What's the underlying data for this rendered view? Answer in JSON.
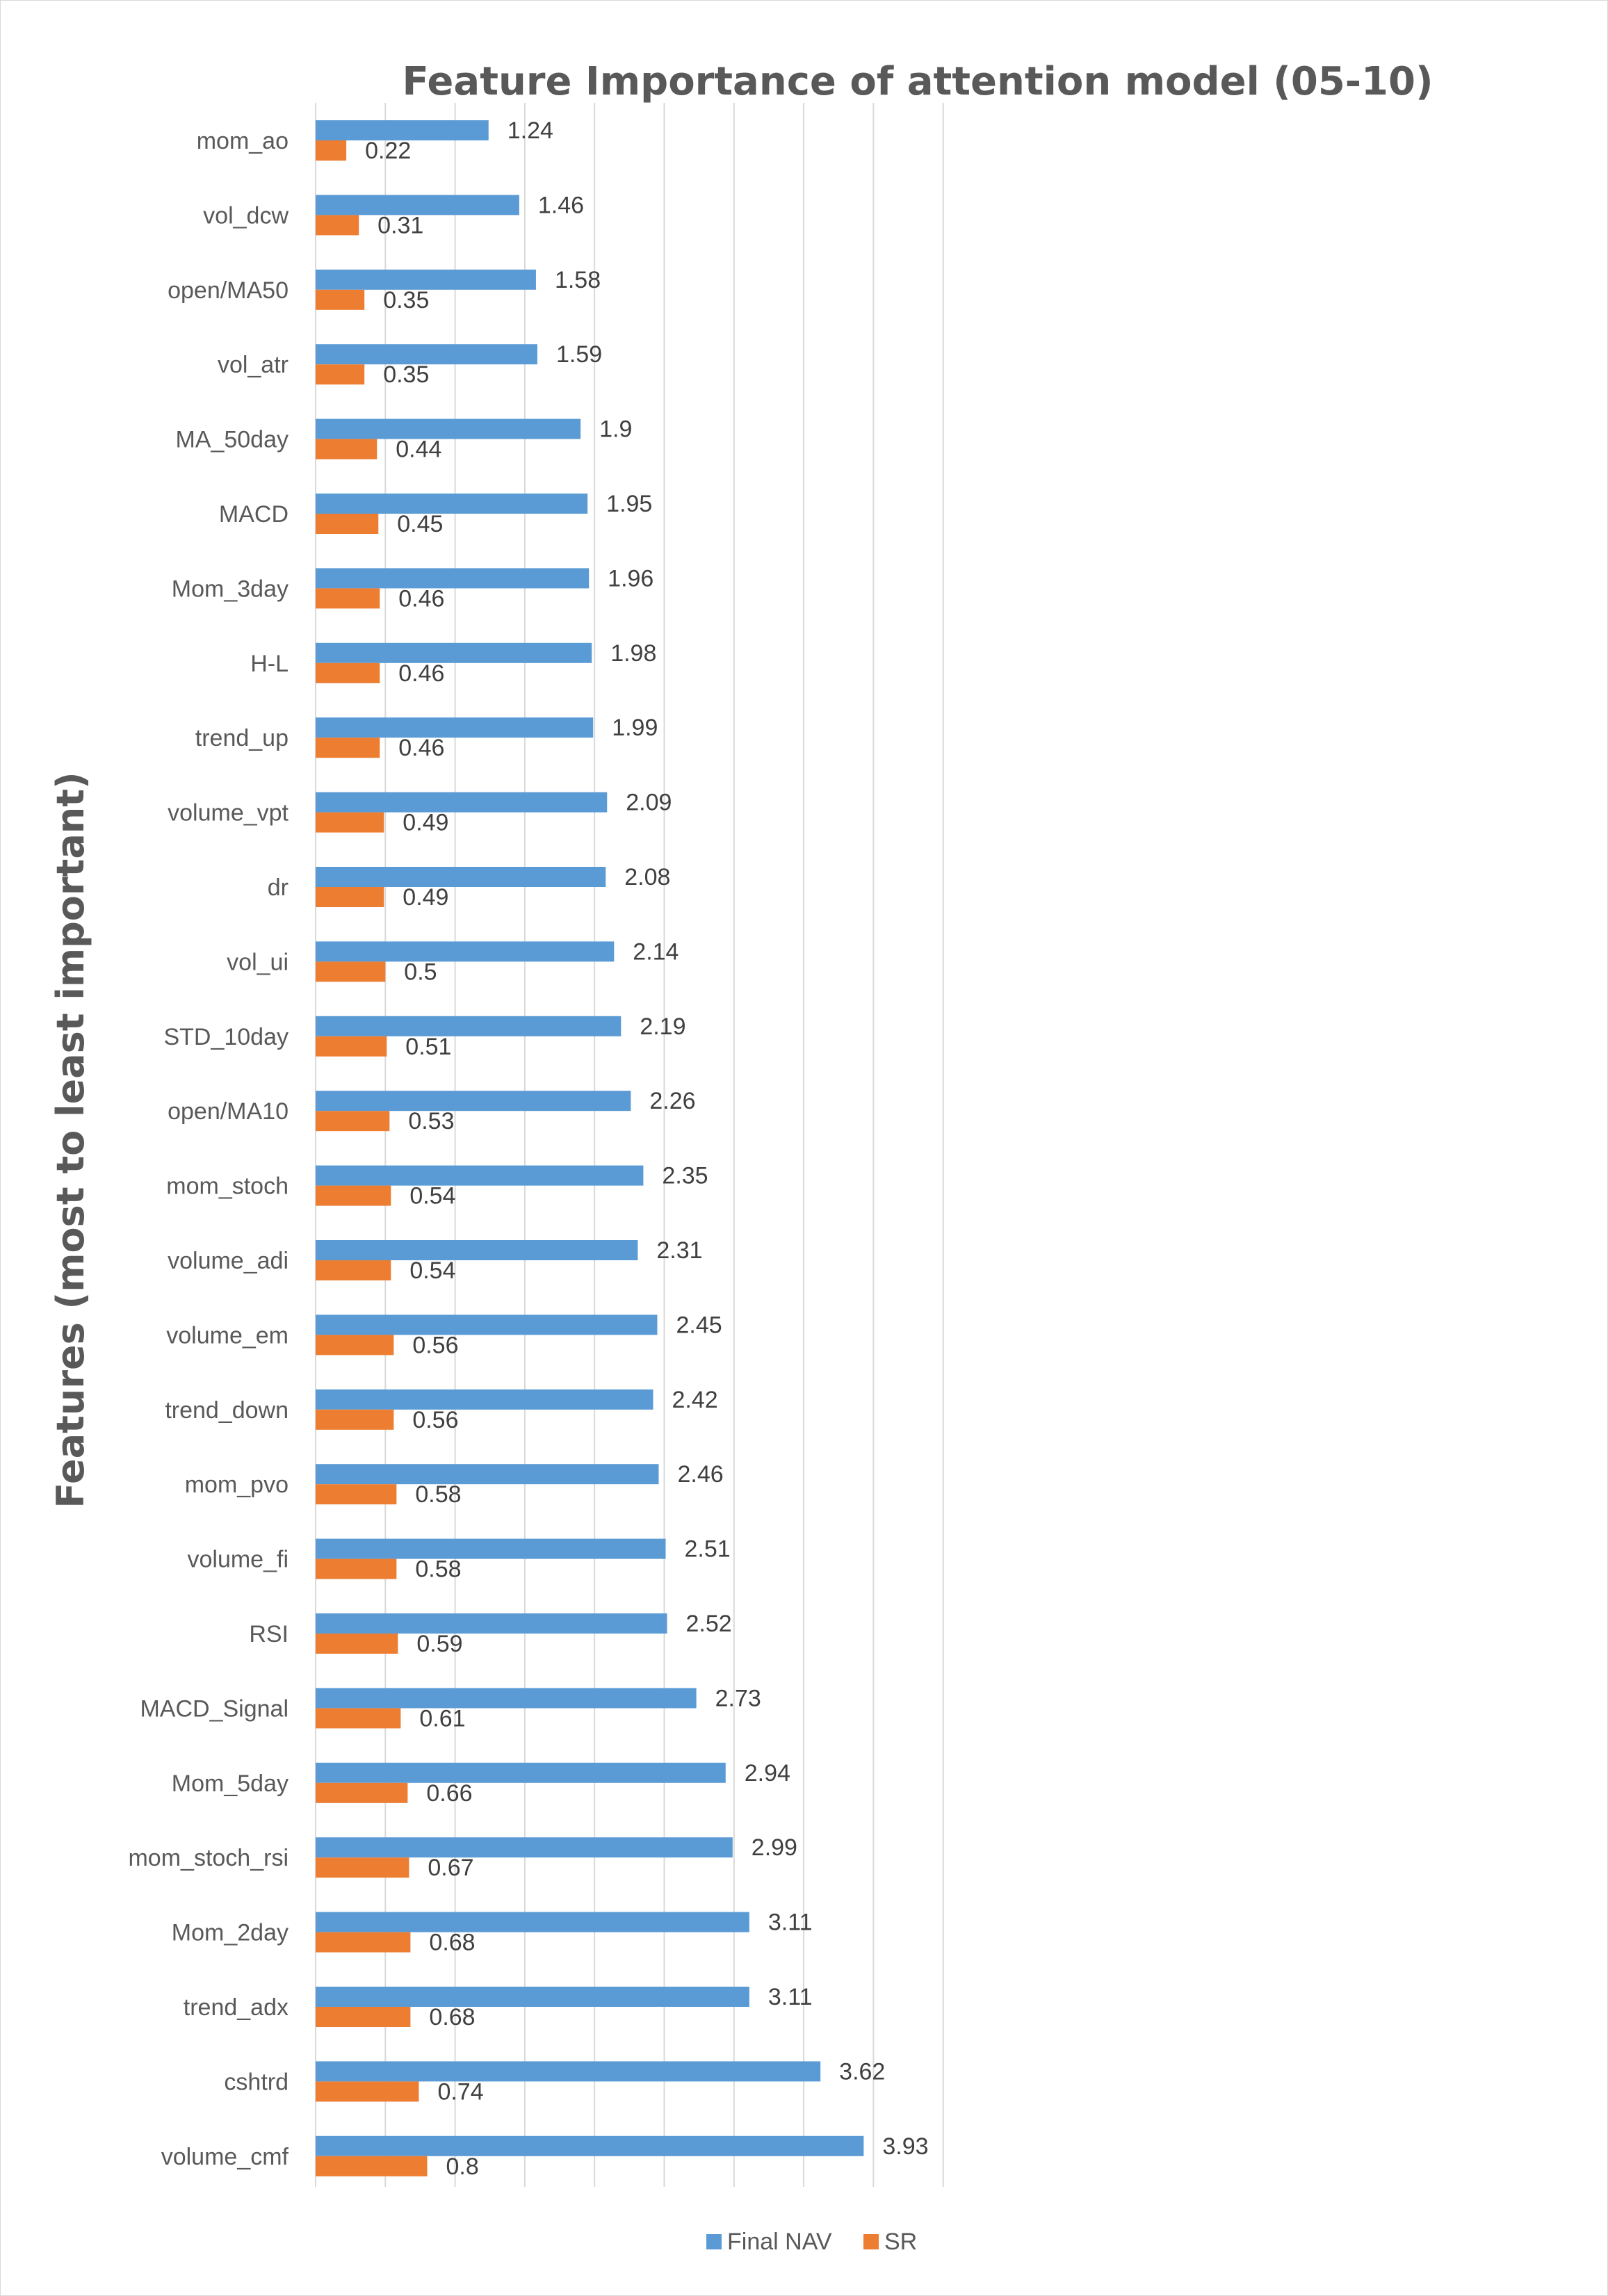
{
  "chart_data": {
    "type": "bar",
    "orientation": "horizontal",
    "title": "Feature Importance of attention model (05-10)",
    "xlabel": "",
    "ylabel": "Features (most to least important)",
    "xlim": [
      0,
      4.5
    ],
    "grid": true,
    "legend_position": "bottom",
    "categories": [
      "mom_ao",
      "vol_dcw",
      "open/MA50",
      "vol_atr",
      "MA_50day",
      "MACD",
      "Mom_3day",
      "H-L",
      "trend_up",
      "volume_vpt",
      "dr",
      "vol_ui",
      "STD_10day",
      "open/MA10",
      "mom_stoch",
      "volume_adi",
      "volume_em",
      "trend_down",
      "mom_pvo",
      "volume_fi",
      "RSI",
      "MACD_Signal",
      "Mom_5day",
      "mom_stoch_rsi",
      "Mom_2day",
      "trend_adx",
      "cshtrd",
      "volume_cmf"
    ],
    "series": [
      {
        "name": "Final NAV",
        "color": "#5B9BD5",
        "values": [
          1.24,
          1.46,
          1.58,
          1.59,
          1.9,
          1.95,
          1.96,
          1.98,
          1.99,
          2.09,
          2.08,
          2.14,
          2.19,
          2.26,
          2.35,
          2.31,
          2.45,
          2.42,
          2.46,
          2.51,
          2.52,
          2.73,
          2.94,
          2.99,
          3.11,
          3.11,
          3.62,
          3.93
        ],
        "labels": [
          "1.24",
          "1.46",
          "1.58",
          "1.59",
          "1.9",
          "1.95",
          "1.96",
          "1.98",
          "1.99",
          "2.09",
          "2.08",
          "2.14",
          "2.19",
          "2.26",
          "2.35",
          "2.31",
          "2.45",
          "2.42",
          "2.46",
          "2.51",
          "2.52",
          "2.73",
          "2.94",
          "2.99",
          "3.11",
          "3.11",
          "3.62",
          "3.93"
        ]
      },
      {
        "name": "SR",
        "color": "#ED7D31",
        "values": [
          0.22,
          0.31,
          0.35,
          0.35,
          0.44,
          0.45,
          0.46,
          0.46,
          0.46,
          0.49,
          0.49,
          0.5,
          0.51,
          0.53,
          0.54,
          0.54,
          0.56,
          0.56,
          0.58,
          0.58,
          0.59,
          0.61,
          0.66,
          0.67,
          0.68,
          0.68,
          0.74,
          0.8
        ],
        "labels": [
          "0.22",
          "0.31",
          "0.35",
          "0.35",
          "0.44",
          "0.45",
          "0.46",
          "0.46",
          "0.46",
          "0.49",
          "0.49",
          "0.5",
          "0.51",
          "0.53",
          "0.54",
          "0.54",
          "0.56",
          "0.56",
          "0.58",
          "0.58",
          "0.59",
          "0.61",
          "0.66",
          "0.67",
          "0.68",
          "0.68",
          "0.74",
          "0.8"
        ]
      }
    ]
  }
}
